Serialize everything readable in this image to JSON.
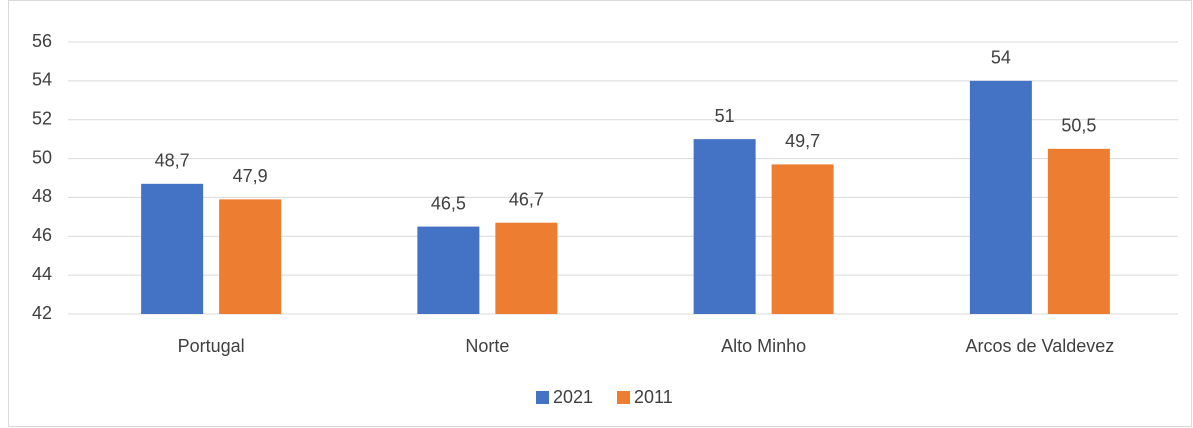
{
  "chart_data": {
    "type": "bar",
    "categories": [
      "Portugal",
      "Norte",
      "Alto Minho",
      "Arcos de Valdevez"
    ],
    "series": [
      {
        "name": "2021",
        "color": "#4472c4",
        "values": [
          48.7,
          46.5,
          51,
          54
        ],
        "value_labels": [
          "48,7",
          "46,5",
          "51",
          "54"
        ]
      },
      {
        "name": "2011",
        "color": "#ed7d31",
        "values": [
          47.9,
          46.7,
          49.7,
          50.5
        ],
        "value_labels": [
          "47,9",
          "46,7",
          "49,7",
          "50,5"
        ]
      }
    ],
    "ylim": [
      42,
      56
    ],
    "yticks": [
      42,
      44,
      46,
      48,
      50,
      52,
      54,
      56
    ],
    "grid": true,
    "legend": "bottom"
  }
}
